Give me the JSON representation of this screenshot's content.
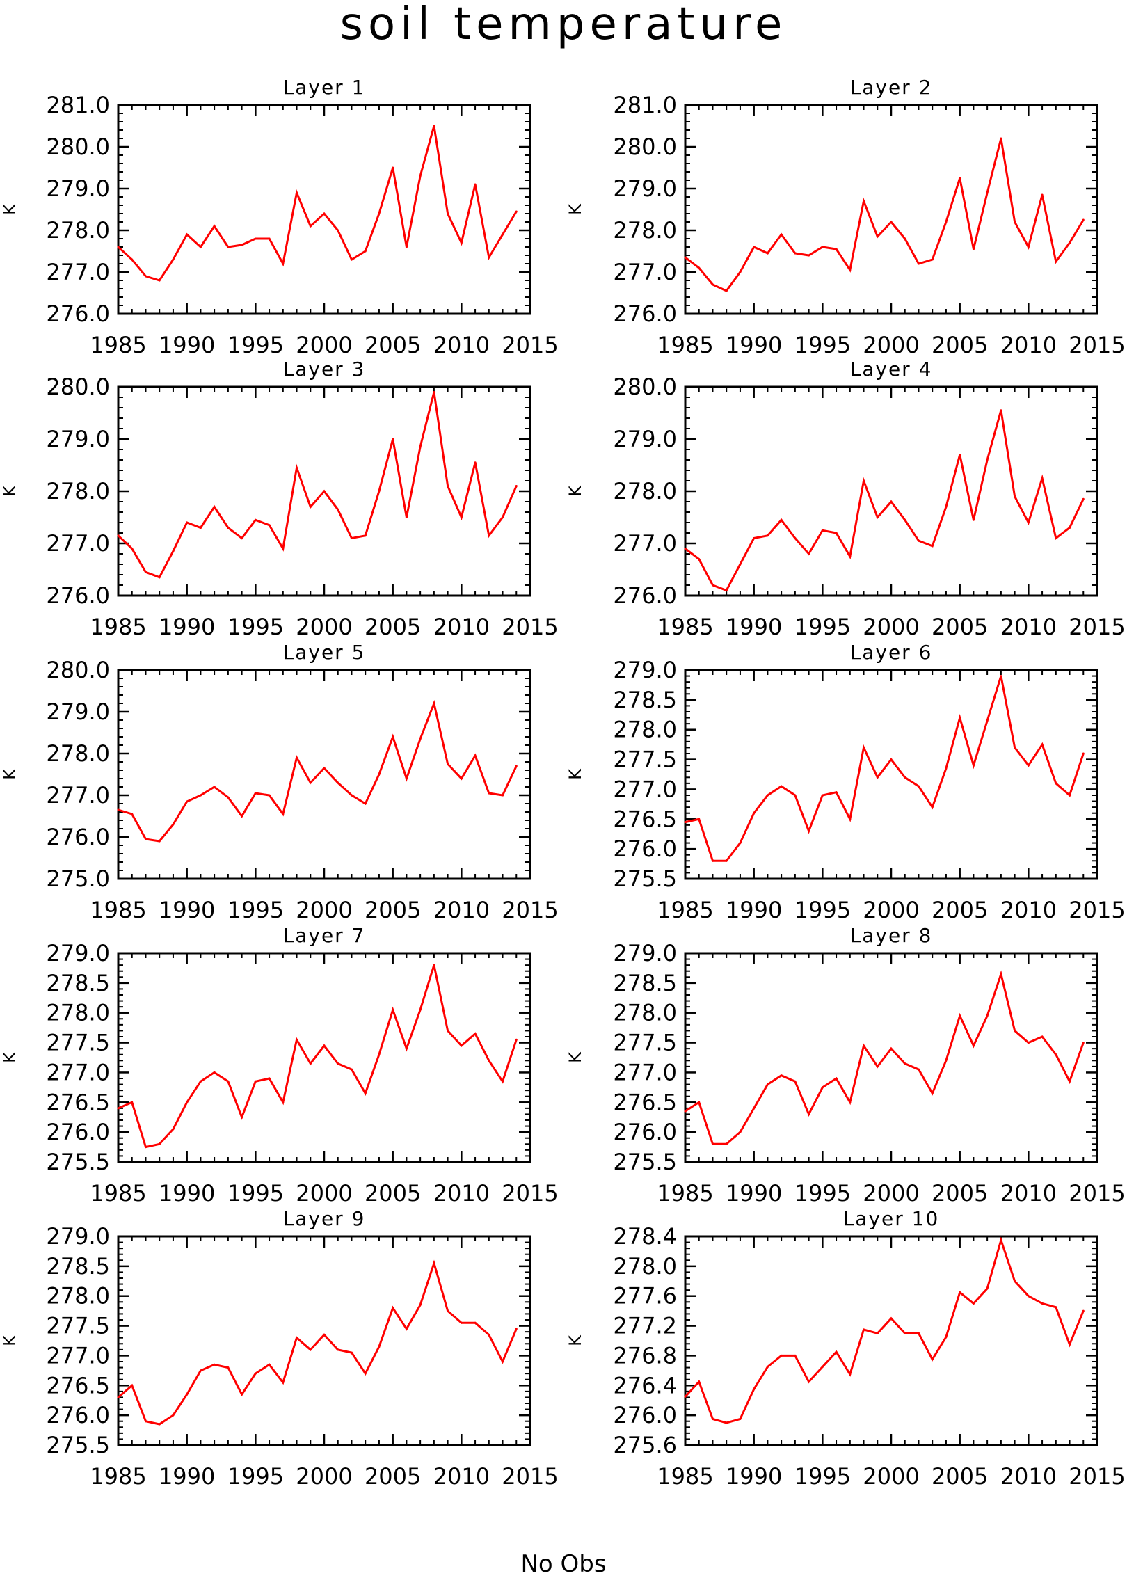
{
  "title": "soil temperature",
  "footnote": "No Obs",
  "colors": {
    "line": "#ff0000",
    "axis": "#000000"
  },
  "chart_data": [
    {
      "type": "line",
      "title": "Layer 1",
      "ylabel": "K",
      "xlim": [
        1985,
        2015
      ],
      "xticks": [
        1985,
        1990,
        1995,
        2000,
        2005,
        2010,
        2015
      ],
      "ylim": [
        276.0,
        281.0
      ],
      "yticks": [
        276.0,
        277.0,
        278.0,
        279.0,
        280.0,
        281.0
      ],
      "ytick_decimals": 1,
      "x": [
        1985,
        1986,
        1987,
        1988,
        1989,
        1990,
        1991,
        1992,
        1993,
        1994,
        1995,
        1996,
        1997,
        1998,
        1999,
        2000,
        2001,
        2002,
        2003,
        2004,
        2005,
        2006,
        2007,
        2008,
        2009,
        2010,
        2011,
        2012,
        2013,
        2014
      ],
      "y": [
        277.6,
        277.3,
        276.9,
        276.8,
        277.3,
        277.9,
        277.6,
        278.1,
        277.6,
        277.65,
        277.8,
        277.8,
        277.2,
        278.9,
        278.1,
        278.4,
        278.0,
        277.3,
        277.5,
        278.4,
        279.5,
        277.6,
        279.3,
        280.5,
        278.4,
        277.7,
        279.1,
        277.35,
        277.9,
        278.45
      ]
    },
    {
      "type": "line",
      "title": "Layer 2",
      "ylabel": "K",
      "xlim": [
        1985,
        2015
      ],
      "xticks": [
        1985,
        1990,
        1995,
        2000,
        2005,
        2010,
        2015
      ],
      "ylim": [
        276.0,
        281.0
      ],
      "yticks": [
        276.0,
        277.0,
        278.0,
        279.0,
        280.0,
        281.0
      ],
      "ytick_decimals": 1,
      "x": [
        1985,
        1986,
        1987,
        1988,
        1989,
        1990,
        1991,
        1992,
        1993,
        1994,
        1995,
        1996,
        1997,
        1998,
        1999,
        2000,
        2001,
        2002,
        2003,
        2004,
        2005,
        2006,
        2007,
        2008,
        2009,
        2010,
        2011,
        2012,
        2013,
        2014
      ],
      "y": [
        277.35,
        277.1,
        276.7,
        276.55,
        277.0,
        277.6,
        277.45,
        277.9,
        277.45,
        277.4,
        277.6,
        277.55,
        277.05,
        278.7,
        277.85,
        278.2,
        277.8,
        277.2,
        277.3,
        278.2,
        279.25,
        277.55,
        278.9,
        280.2,
        278.2,
        277.6,
        278.85,
        277.25,
        277.7,
        278.25
      ]
    },
    {
      "type": "line",
      "title": "Layer 3",
      "ylabel": "K",
      "xlim": [
        1985,
        2015
      ],
      "xticks": [
        1985,
        1990,
        1995,
        2000,
        2005,
        2010,
        2015
      ],
      "ylim": [
        276.0,
        280.0
      ],
      "yticks": [
        276.0,
        277.0,
        278.0,
        279.0,
        280.0
      ],
      "ytick_decimals": 1,
      "x": [
        1985,
        1986,
        1987,
        1988,
        1989,
        1990,
        1991,
        1992,
        1993,
        1994,
        1995,
        1996,
        1997,
        1998,
        1999,
        2000,
        2001,
        2002,
        2003,
        2004,
        2005,
        2006,
        2007,
        2008,
        2009,
        2010,
        2011,
        2012,
        2013,
        2014
      ],
      "y": [
        277.15,
        276.9,
        276.45,
        276.35,
        276.85,
        277.4,
        277.3,
        277.7,
        277.3,
        277.1,
        277.45,
        277.35,
        276.9,
        278.45,
        277.7,
        278.0,
        277.65,
        277.1,
        277.15,
        278.0,
        279.0,
        277.5,
        278.85,
        279.9,
        278.1,
        277.5,
        278.55,
        277.15,
        277.5,
        278.1
      ]
    },
    {
      "type": "line",
      "title": "Layer 4",
      "ylabel": "K",
      "xlim": [
        1985,
        2015
      ],
      "xticks": [
        1985,
        1990,
        1995,
        2000,
        2005,
        2010,
        2015
      ],
      "ylim": [
        276.0,
        280.0
      ],
      "yticks": [
        276.0,
        277.0,
        278.0,
        279.0,
        280.0
      ],
      "ytick_decimals": 1,
      "x": [
        1985,
        1986,
        1987,
        1988,
        1989,
        1990,
        1991,
        1992,
        1993,
        1994,
        1995,
        1996,
        1997,
        1998,
        1999,
        2000,
        2001,
        2002,
        2003,
        2004,
        2005,
        2006,
        2007,
        2008,
        2009,
        2010,
        2011,
        2012,
        2013,
        2014
      ],
      "y": [
        276.9,
        276.7,
        276.2,
        276.1,
        276.6,
        277.1,
        277.15,
        277.45,
        277.1,
        276.8,
        277.25,
        277.2,
        276.75,
        278.2,
        277.5,
        277.8,
        277.45,
        277.05,
        276.95,
        277.7,
        278.7,
        277.45,
        278.6,
        279.55,
        277.9,
        277.4,
        278.25,
        277.1,
        277.3,
        277.85
      ]
    },
    {
      "type": "line",
      "title": "Layer 5",
      "ylabel": "K",
      "xlim": [
        1985,
        2015
      ],
      "xticks": [
        1985,
        1990,
        1995,
        2000,
        2005,
        2010,
        2015
      ],
      "ylim": [
        275.0,
        280.0
      ],
      "yticks": [
        275.0,
        276.0,
        277.0,
        278.0,
        279.0,
        280.0
      ],
      "ytick_decimals": 1,
      "x": [
        1985,
        1986,
        1987,
        1988,
        1989,
        1990,
        1991,
        1992,
        1993,
        1994,
        1995,
        1996,
        1997,
        1998,
        1999,
        2000,
        2001,
        2002,
        2003,
        2004,
        2005,
        2006,
        2007,
        2008,
        2009,
        2010,
        2011,
        2012,
        2013,
        2014
      ],
      "y": [
        276.65,
        276.55,
        275.95,
        275.9,
        276.3,
        276.85,
        277.0,
        277.2,
        276.95,
        276.5,
        277.05,
        277.0,
        276.55,
        277.9,
        277.3,
        277.65,
        277.3,
        277.0,
        276.8,
        277.5,
        278.4,
        277.4,
        278.35,
        279.2,
        277.75,
        277.4,
        277.95,
        277.05,
        277.0,
        277.7
      ]
    },
    {
      "type": "line",
      "title": "Layer 6",
      "ylabel": "K",
      "xlim": [
        1985,
        2015
      ],
      "xticks": [
        1985,
        1990,
        1995,
        2000,
        2005,
        2010,
        2015
      ],
      "ylim": [
        275.5,
        279.0
      ],
      "yticks": [
        275.5,
        276.0,
        276.5,
        277.0,
        277.5,
        278.0,
        278.5,
        279.0
      ],
      "ytick_decimals": 1,
      "x": [
        1985,
        1986,
        1987,
        1988,
        1989,
        1990,
        1991,
        1992,
        1993,
        1994,
        1995,
        1996,
        1997,
        1998,
        1999,
        2000,
        2001,
        2002,
        2003,
        2004,
        2005,
        2006,
        2007,
        2008,
        2009,
        2010,
        2011,
        2012,
        2013,
        2014
      ],
      "y": [
        276.45,
        276.5,
        275.8,
        275.8,
        276.1,
        276.6,
        276.9,
        277.05,
        276.9,
        276.3,
        276.9,
        276.95,
        276.5,
        277.7,
        277.2,
        277.5,
        277.2,
        277.05,
        276.7,
        277.35,
        278.2,
        277.4,
        278.15,
        278.9,
        277.7,
        277.4,
        277.75,
        277.1,
        276.9,
        277.6
      ]
    },
    {
      "type": "line",
      "title": "Layer 7",
      "ylabel": "K",
      "xlim": [
        1985,
        2015
      ],
      "xticks": [
        1985,
        1990,
        1995,
        2000,
        2005,
        2010,
        2015
      ],
      "ylim": [
        275.5,
        279.0
      ],
      "yticks": [
        275.5,
        276.0,
        276.5,
        277.0,
        277.5,
        278.0,
        278.5,
        279.0
      ],
      "ytick_decimals": 1,
      "x": [
        1985,
        1986,
        1987,
        1988,
        1989,
        1990,
        1991,
        1992,
        1993,
        1994,
        1995,
        1996,
        1997,
        1998,
        1999,
        2000,
        2001,
        2002,
        2003,
        2004,
        2005,
        2006,
        2007,
        2008,
        2009,
        2010,
        2011,
        2012,
        2013,
        2014
      ],
      "y": [
        276.4,
        276.5,
        275.75,
        275.8,
        276.05,
        276.5,
        276.85,
        277.0,
        276.85,
        276.25,
        276.85,
        276.9,
        276.5,
        277.55,
        277.15,
        277.45,
        277.15,
        277.05,
        276.65,
        277.3,
        278.05,
        277.4,
        278.05,
        278.8,
        277.7,
        277.45,
        277.65,
        277.2,
        276.85,
        277.55
      ]
    },
    {
      "type": "line",
      "title": "Layer 8",
      "ylabel": "K",
      "xlim": [
        1985,
        2015
      ],
      "xticks": [
        1985,
        1990,
        1995,
        2000,
        2005,
        2010,
        2015
      ],
      "ylim": [
        275.5,
        279.0
      ],
      "yticks": [
        275.5,
        276.0,
        276.5,
        277.0,
        277.5,
        278.0,
        278.5,
        279.0
      ],
      "ytick_decimals": 1,
      "x": [
        1985,
        1986,
        1987,
        1988,
        1989,
        1990,
        1991,
        1992,
        1993,
        1994,
        1995,
        1996,
        1997,
        1998,
        1999,
        2000,
        2001,
        2002,
        2003,
        2004,
        2005,
        2006,
        2007,
        2008,
        2009,
        2010,
        2011,
        2012,
        2013,
        2014
      ],
      "y": [
        276.35,
        276.5,
        275.8,
        275.8,
        276.0,
        276.4,
        276.8,
        276.95,
        276.85,
        276.3,
        276.75,
        276.9,
        276.5,
        277.45,
        277.1,
        277.4,
        277.15,
        277.05,
        276.65,
        277.2,
        277.95,
        277.45,
        277.95,
        278.65,
        277.7,
        277.5,
        277.6,
        277.3,
        276.85,
        277.5
      ]
    },
    {
      "type": "line",
      "title": "Layer 9",
      "ylabel": "K",
      "xlim": [
        1985,
        2015
      ],
      "xticks": [
        1985,
        1990,
        1995,
        2000,
        2005,
        2010,
        2015
      ],
      "ylim": [
        275.5,
        279.0
      ],
      "yticks": [
        275.5,
        276.0,
        276.5,
        277.0,
        277.5,
        278.0,
        278.5,
        279.0
      ],
      "ytick_decimals": 1,
      "x": [
        1985,
        1986,
        1987,
        1988,
        1989,
        1990,
        1991,
        1992,
        1993,
        1994,
        1995,
        1996,
        1997,
        1998,
        1999,
        2000,
        2001,
        2002,
        2003,
        2004,
        2005,
        2006,
        2007,
        2008,
        2009,
        2010,
        2011,
        2012,
        2013,
        2014
      ],
      "y": [
        276.3,
        276.5,
        275.9,
        275.85,
        276.0,
        276.35,
        276.75,
        276.85,
        276.8,
        276.35,
        276.7,
        276.85,
        276.55,
        277.3,
        277.1,
        277.35,
        277.1,
        277.05,
        276.7,
        277.15,
        277.8,
        277.45,
        277.85,
        278.55,
        277.75,
        277.55,
        277.55,
        277.35,
        276.9,
        277.45
      ]
    },
    {
      "type": "line",
      "title": "Layer 10",
      "ylabel": "K",
      "xlim": [
        1985,
        2015
      ],
      "xticks": [
        1985,
        1990,
        1995,
        2000,
        2005,
        2010,
        2015
      ],
      "ylim": [
        275.6,
        278.4
      ],
      "yticks": [
        275.6,
        276.0,
        276.4,
        276.8,
        277.2,
        277.6,
        278.0,
        278.4
      ],
      "ytick_decimals": 1,
      "x": [
        1985,
        1986,
        1987,
        1988,
        1989,
        1990,
        1991,
        1992,
        1993,
        1994,
        1995,
        1996,
        1997,
        1998,
        1999,
        2000,
        2001,
        2002,
        2003,
        2004,
        2005,
        2006,
        2007,
        2008,
        2009,
        2010,
        2011,
        2012,
        2013,
        2014
      ],
      "y": [
        276.25,
        276.45,
        275.95,
        275.9,
        275.95,
        276.35,
        276.65,
        276.8,
        276.8,
        276.45,
        276.65,
        276.85,
        276.55,
        277.15,
        277.1,
        277.3,
        277.1,
        277.1,
        276.75,
        277.05,
        277.65,
        277.5,
        277.7,
        278.35,
        277.8,
        277.6,
        277.5,
        277.45,
        276.95,
        277.4
      ]
    }
  ]
}
